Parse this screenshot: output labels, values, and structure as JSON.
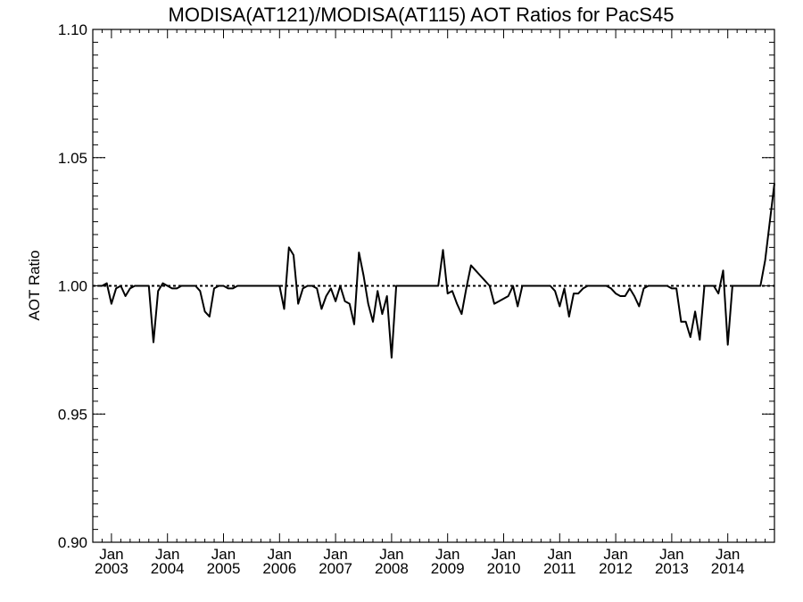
{
  "chart_data": {
    "type": "line",
    "title": "MODISA(AT121)/MODISA(AT115)  AOT Ratios for PacS45",
    "xlabel": "",
    "ylabel": "AOT Ratio",
    "ylim": [
      0.9,
      1.1
    ],
    "xlim": [
      2002.667,
      2014.833
    ],
    "y_ticks": [
      "0.90",
      "0.95",
      "1.00",
      "1.05",
      "1.10"
    ],
    "x_ticks": [
      {
        "month": "Jan",
        "year": "2003",
        "x": 2003.0
      },
      {
        "month": "Jan",
        "year": "2004",
        "x": 2004.0
      },
      {
        "month": "Jan",
        "year": "2005",
        "x": 2005.0
      },
      {
        "month": "Jan",
        "year": "2006",
        "x": 2006.0
      },
      {
        "month": "Jan",
        "year": "2007",
        "x": 2007.0
      },
      {
        "month": "Jan",
        "year": "2008",
        "x": 2008.0
      },
      {
        "month": "Jan",
        "year": "2009",
        "x": 2009.0
      },
      {
        "month": "Jan",
        "year": "2010",
        "x": 2010.0
      },
      {
        "month": "Jan",
        "year": "2011",
        "x": 2011.0
      },
      {
        "month": "Jan",
        "year": "2012",
        "x": 2012.0
      },
      {
        "month": "Jan",
        "year": "2013",
        "x": 2013.0
      },
      {
        "month": "Jan",
        "year": "2014",
        "x": 2014.0
      }
    ],
    "reference_line": 1.0,
    "grid": false,
    "series": [
      {
        "x": [
          2002.75,
          2002.833,
          2002.917,
          2003.0,
          2003.083,
          2003.167,
          2003.25,
          2003.333,
          2003.417,
          2003.5,
          2003.583,
          2003.667,
          2003.75,
          2003.833,
          2003.917,
          2004.0,
          2004.083,
          2004.167,
          2004.25,
          2004.333,
          2004.417,
          2004.5,
          2004.583,
          2004.667,
          2004.75,
          2004.833,
          2004.917,
          2005.0,
          2005.083,
          2005.167,
          2005.25,
          2005.333,
          2005.417,
          2005.5,
          2005.583,
          2005.667,
          2005.75,
          2005.833,
          2005.917,
          2006.0,
          2006.083,
          2006.167,
          2006.25,
          2006.333,
          2006.417,
          2006.5,
          2006.583,
          2006.667,
          2006.75,
          2006.833,
          2006.917,
          2007.0,
          2007.083,
          2007.167,
          2007.25,
          2007.333,
          2007.417,
          2007.5,
          2007.583,
          2007.667,
          2007.75,
          2007.833,
          2007.917,
          2008.0,
          2008.083,
          2008.167,
          2008.25,
          2008.333,
          2008.417,
          2008.5,
          2008.583,
          2008.667,
          2008.75,
          2008.833,
          2008.917,
          2009.0,
          2009.083,
          2009.167,
          2009.25,
          2009.333,
          2009.417,
          2009.5,
          2009.583,
          2009.667,
          2009.75,
          2009.833,
          2009.917,
          2010.0,
          2010.083,
          2010.167,
          2010.25,
          2010.333,
          2010.417,
          2010.5,
          2010.583,
          2010.667,
          2010.75,
          2010.833,
          2010.917,
          2011.0,
          2011.083,
          2011.167,
          2011.25,
          2011.333,
          2011.417,
          2011.5,
          2011.583,
          2011.667,
          2011.75,
          2011.833,
          2011.917,
          2012.0,
          2012.083,
          2012.167,
          2012.25,
          2012.333,
          2012.417,
          2012.5,
          2012.583,
          2012.667,
          2012.75,
          2012.833,
          2012.917,
          2013.0,
          2013.083,
          2013.167,
          2013.25,
          2013.333,
          2013.417,
          2013.5,
          2013.583,
          2013.667,
          2013.75,
          2013.833,
          2013.917,
          2014.0,
          2014.083,
          2014.167,
          2014.25,
          2014.333,
          2014.417,
          2014.5,
          2014.583,
          2014.667,
          2014.833
        ],
        "y": [
          1.0,
          1.0,
          1.001,
          0.993,
          0.999,
          1.0,
          0.996,
          0.999,
          1.0,
          1.0,
          1.0,
          1.0,
          0.978,
          0.998,
          1.001,
          1.0,
          0.999,
          0.999,
          1.0,
          1.0,
          1.0,
          1.0,
          0.998,
          0.99,
          0.988,
          0.999,
          1.0,
          1.0,
          0.999,
          0.999,
          1.0,
          1.0,
          1.0,
          1.0,
          1.0,
          1.0,
          1.0,
          1.0,
          1.0,
          1.0,
          0.991,
          1.015,
          1.012,
          0.993,
          0.999,
          1.0,
          1.0,
          0.999,
          0.991,
          0.996,
          0.999,
          0.994,
          1.0,
          0.994,
          0.993,
          0.985,
          1.013,
          1.004,
          0.993,
          0.986,
          0.998,
          0.989,
          0.996,
          0.972,
          1.0,
          1.0,
          1.0,
          1.0,
          1.0,
          1.0,
          1.0,
          1.0,
          1.0,
          1.0,
          1.014,
          0.997,
          0.998,
          0.993,
          0.989,
          0.999,
          1.008,
          1.006,
          1.004,
          1.002,
          1.0,
          0.993,
          0.994,
          0.995,
          0.996,
          1.0,
          0.992,
          1.0,
          1.0,
          1.0,
          1.0,
          1.0,
          1.0,
          1.0,
          0.998,
          0.992,
          0.999,
          0.988,
          0.997,
          0.997,
          0.999,
          1.0,
          1.0,
          1.0,
          1.0,
          1.0,
          0.999,
          0.997,
          0.996,
          0.996,
          0.999,
          0.996,
          0.992,
          0.999,
          1.0,
          1.0,
          1.0,
          1.0,
          1.0,
          0.999,
          0.999,
          0.986,
          0.986,
          0.98,
          0.99,
          0.979,
          1.0,
          1.0,
          1.0,
          0.997,
          1.006,
          0.977,
          1.0,
          1.0,
          1.0,
          1.0,
          1.0,
          1.0,
          1.0,
          1.01,
          1.04
        ]
      }
    ]
  }
}
